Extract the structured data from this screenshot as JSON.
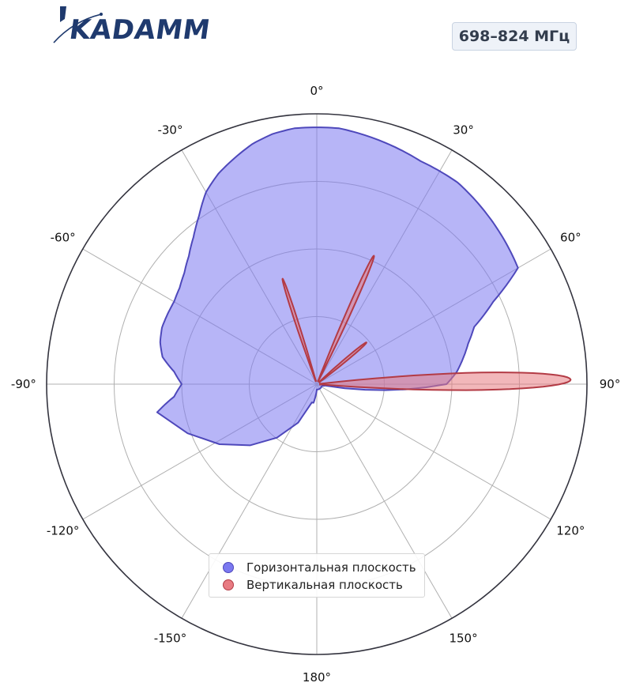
{
  "header": {
    "logo_text": "KADAMM",
    "badge": "698–824 МГц"
  },
  "colors": {
    "horizontal_fill": "#7b79f0",
    "horizontal_stroke": "#4e48bb",
    "vertical_fill": "#e87b82",
    "vertical_stroke": "#b33b45",
    "axis": "#34343f",
    "grid": "#b0b0b0",
    "logo": "#1f3a6e"
  },
  "chart_data": {
    "type": "polar",
    "theta_zero": "top",
    "theta_direction": "clockwise",
    "r_range": [
      0,
      1
    ],
    "r_ticks": [
      0.25,
      0.5,
      0.75,
      1.0
    ],
    "angle_labels": [
      "0°",
      "30°",
      "60°",
      "90°",
      "120°",
      "150°",
      "180°",
      "-150°",
      "-120°",
      "-90°",
      "-60°",
      "-30°"
    ],
    "grid": true,
    "legend_placement": "bottom-center",
    "series": [
      {
        "name": "Горизонтальная плоскость",
        "color_key": "horizontal",
        "theta_deg": [
          -100,
          -95,
          -90,
          -85,
          -80,
          -75,
          -70,
          -65,
          -60,
          -55,
          -50,
          -45,
          -40,
          -35,
          -30,
          -25,
          -20,
          -15,
          -10,
          -5,
          0,
          5,
          10,
          15,
          20,
          25,
          30,
          35,
          40,
          45,
          50,
          55,
          60,
          65,
          70,
          75,
          80,
          85,
          90,
          100,
          110,
          130,
          150,
          170,
          180,
          -175,
          -170,
          -165
        ],
        "r": [
          0.6,
          0.53,
          0.5,
          0.53,
          0.58,
          0.6,
          0.61,
          0.61,
          0.61,
          0.62,
          0.64,
          0.67,
          0.71,
          0.76,
          0.82,
          0.86,
          0.89,
          0.92,
          0.94,
          0.95,
          0.95,
          0.95,
          0.94,
          0.93,
          0.92,
          0.91,
          0.91,
          0.91,
          0.9,
          0.89,
          0.88,
          0.87,
          0.86,
          0.72,
          0.62,
          0.58,
          0.55,
          0.52,
          0.48,
          0.03,
          0.02,
          0.02,
          0.02,
          0.02,
          0.02,
          0.04,
          0.07,
          0.07
        ]
      },
      {
        "name": "Вертикальная плоскость",
        "color_key": "vertical",
        "lobes": [
          {
            "theta_deg": -18,
            "r": 0.41,
            "half_width_deg": 2.2
          },
          {
            "theta_deg": 24,
            "r": 0.52,
            "half_width_deg": 2.6
          },
          {
            "theta_deg": 50,
            "r": 0.24,
            "half_width_deg": 3.2
          },
          {
            "theta_deg": 89,
            "r": 0.94,
            "half_width_deg": 5.5
          }
        ]
      }
    ]
  }
}
